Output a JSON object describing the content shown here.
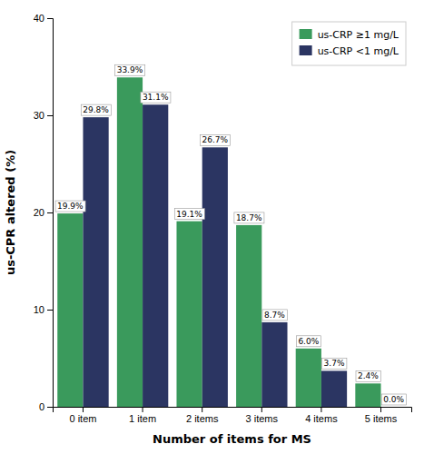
{
  "chart_data": {
    "type": "bar",
    "xlabel": "Number of items for MS",
    "ylabel": "us-CPR altered (%)",
    "categories": [
      "0 item",
      "1 item",
      "2 items",
      "3 items",
      "4 items",
      "5 items"
    ],
    "series": [
      {
        "name": "us-CRP ≥1 mg/L",
        "color": "#3a9a5c",
        "values": [
          19.9,
          33.9,
          19.1,
          18.7,
          6.0,
          2.4
        ],
        "value_labels": [
          "19.9%",
          "33.9%",
          "19.1%",
          "18.7%",
          "6.0%",
          "2.4%"
        ]
      },
      {
        "name": "us-CRP <1 mg/L",
        "color": "#2b3562",
        "values": [
          29.8,
          31.1,
          26.7,
          8.7,
          3.7,
          0.0
        ],
        "value_labels": [
          "29.8%",
          "31.1%",
          "26.7%",
          "8.7%",
          "3.7%",
          "0.0%"
        ]
      }
    ],
    "ylim": [
      0,
      40
    ],
    "yticks": [
      0,
      10,
      20,
      30,
      40
    ],
    "grid": false,
    "legend": "upper right",
    "data_labels": true
  }
}
